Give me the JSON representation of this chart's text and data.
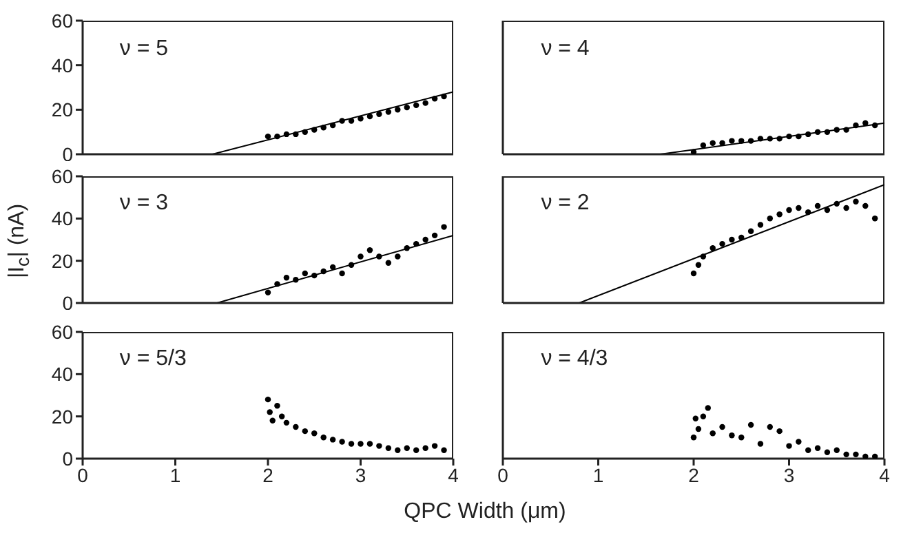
{
  "chart_data": [
    {
      "type": "scatter",
      "annotations": [
        "ν = 5"
      ],
      "xlim": [
        0,
        4
      ],
      "ylim": [
        0,
        60
      ],
      "xticks": [
        0,
        1,
        2,
        3,
        4
      ],
      "yticks": [
        0,
        20,
        40,
        60
      ],
      "grid": false,
      "marker": "circle",
      "tick_labels": "y",
      "series": [
        {
          "type": "scatter",
          "color": "#000000",
          "x": [
            2.0,
            2.1,
            2.2,
            2.3,
            2.4,
            2.5,
            2.6,
            2.7,
            2.8,
            2.9,
            3.0,
            3.1,
            3.2,
            3.3,
            3.4,
            3.5,
            3.6,
            3.7,
            3.8,
            3.9
          ],
          "values": [
            8,
            8,
            9,
            9,
            10,
            11,
            12,
            13,
            15,
            15,
            16,
            17,
            18,
            19,
            20,
            21,
            22,
            23,
            25,
            26
          ]
        },
        {
          "type": "line",
          "color": "#000000",
          "marker": "none",
          "x": [
            1.4,
            4
          ],
          "values": [
            0,
            28
          ]
        }
      ]
    },
    {
      "type": "scatter",
      "annotations": [
        "ν = 4"
      ],
      "xlim": [
        0,
        4
      ],
      "ylim": [
        0,
        60
      ],
      "xticks": [
        0,
        1,
        2,
        3,
        4
      ],
      "yticks": [
        0,
        20,
        40,
        60
      ],
      "grid": false,
      "marker": "circle",
      "tick_labels": false,
      "series": [
        {
          "type": "scatter",
          "color": "#000000",
          "x": [
            2.0,
            2.1,
            2.2,
            2.3,
            2.4,
            2.5,
            2.6,
            2.7,
            2.8,
            2.9,
            3.0,
            3.1,
            3.2,
            3.3,
            3.4,
            3.5,
            3.6,
            3.7,
            3.8,
            3.9
          ],
          "values": [
            1,
            4,
            5,
            5,
            6,
            6,
            6,
            7,
            7,
            7,
            8,
            8,
            9,
            10,
            10,
            11,
            11,
            13,
            14,
            13
          ]
        },
        {
          "type": "line",
          "color": "#000000",
          "marker": "none",
          "x": [
            1.65,
            4
          ],
          "values": [
            0,
            14
          ]
        }
      ]
    },
    {
      "type": "scatter",
      "annotations": [
        "ν = 3"
      ],
      "ylabel": "|I$_{c}$| (nA)",
      "xlim": [
        0,
        4
      ],
      "ylim": [
        0,
        60
      ],
      "xticks": [
        0,
        1,
        2,
        3,
        4
      ],
      "yticks": [
        0,
        20,
        40,
        60
      ],
      "grid": false,
      "marker": "circle",
      "tick_labels": "y",
      "series": [
        {
          "type": "scatter",
          "color": "#000000",
          "x": [
            2.0,
            2.1,
            2.2,
            2.3,
            2.4,
            2.5,
            2.6,
            2.7,
            2.8,
            2.9,
            3.0,
            3.1,
            3.2,
            3.3,
            3.4,
            3.5,
            3.6,
            3.7,
            3.8,
            3.9
          ],
          "values": [
            5,
            9,
            12,
            11,
            14,
            13,
            15,
            17,
            14,
            18,
            22,
            25,
            22,
            19,
            22,
            26,
            28,
            30,
            32,
            36
          ]
        },
        {
          "type": "line",
          "color": "#000000",
          "marker": "none",
          "x": [
            1.45,
            4
          ],
          "values": [
            0,
            32
          ]
        }
      ]
    },
    {
      "type": "scatter",
      "annotations": [
        "ν = 2"
      ],
      "xlim": [
        0,
        4
      ],
      "ylim": [
        0,
        60
      ],
      "xticks": [
        0,
        1,
        2,
        3,
        4
      ],
      "yticks": [
        0,
        20,
        40,
        60
      ],
      "grid": false,
      "marker": "circle",
      "tick_labels": false,
      "series": [
        {
          "type": "scatter",
          "color": "#000000",
          "x": [
            2.0,
            2.05,
            2.1,
            2.2,
            2.3,
            2.4,
            2.5,
            2.6,
            2.7,
            2.8,
            2.9,
            3.0,
            3.1,
            3.2,
            3.3,
            3.4,
            3.5,
            3.6,
            3.7,
            3.8,
            3.9
          ],
          "values": [
            14,
            18,
            22,
            26,
            28,
            30,
            31,
            34,
            37,
            40,
            42,
            44,
            45,
            43,
            46,
            44,
            47,
            45,
            48,
            46,
            40
          ]
        },
        {
          "type": "line",
          "color": "#000000",
          "marker": "none",
          "x": [
            0.8,
            4
          ],
          "values": [
            0,
            56
          ]
        }
      ]
    },
    {
      "type": "scatter",
      "annotations": [
        "ν = 5/3"
      ],
      "xlabel": "QPC Width (μm)",
      "xlim": [
        0,
        4
      ],
      "ylim": [
        0,
        60
      ],
      "xticks": [
        0,
        1,
        2,
        3,
        4
      ],
      "yticks": [
        0,
        20,
        40,
        60
      ],
      "grid": false,
      "marker": "circle",
      "series": [
        {
          "type": "scatter",
          "color": "#000000",
          "x": [
            2.0,
            2.02,
            2.05,
            2.1,
            2.15,
            2.2,
            2.3,
            2.4,
            2.5,
            2.6,
            2.7,
            2.8,
            2.9,
            3.0,
            3.1,
            3.2,
            3.3,
            3.4,
            3.5,
            3.6,
            3.7,
            3.8,
            3.9
          ],
          "values": [
            28,
            22,
            18,
            25,
            20,
            17,
            15,
            13,
            12,
            10,
            9,
            8,
            7,
            7,
            7,
            6,
            5,
            4,
            5,
            4,
            5,
            6,
            4
          ]
        }
      ]
    },
    {
      "type": "scatter",
      "annotations": [
        "ν = 4/3"
      ],
      "xlim": [
        0,
        4
      ],
      "ylim": [
        0,
        60
      ],
      "xticks": [
        0,
        1,
        2,
        3,
        4
      ],
      "yticks": [
        0,
        20,
        40,
        60
      ],
      "grid": false,
      "marker": "circle",
      "tick_labels": "x",
      "series": [
        {
          "type": "scatter",
          "color": "#000000",
          "x": [
            2.0,
            2.02,
            2.05,
            2.1,
            2.15,
            2.2,
            2.3,
            2.4,
            2.5,
            2.6,
            2.7,
            2.8,
            2.9,
            3.0,
            3.1,
            3.2,
            3.3,
            3.4,
            3.5,
            3.6,
            3.7,
            3.8,
            3.9
          ],
          "values": [
            10,
            19,
            14,
            20,
            24,
            12,
            15,
            11,
            10,
            16,
            7,
            15,
            13,
            6,
            8,
            4,
            5,
            3,
            4,
            2,
            2,
            1,
            1
          ]
        }
      ]
    }
  ]
}
